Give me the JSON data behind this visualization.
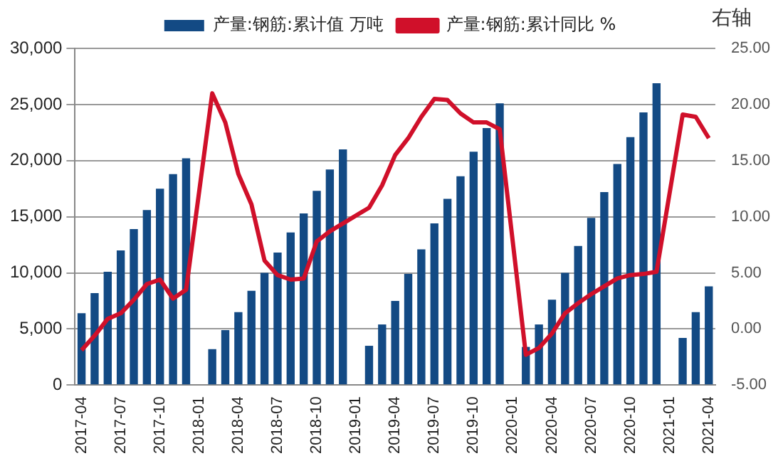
{
  "chart_data": {
    "type": "bar",
    "categories": [
      "2017-04",
      null,
      null,
      "2017-07",
      null,
      null,
      "2017-10",
      null,
      null,
      "2018-01",
      null,
      null,
      "2018-04",
      null,
      null,
      "2018-07",
      null,
      null,
      "2018-10",
      null,
      null,
      "2019-01",
      null,
      null,
      "2019-04",
      null,
      null,
      "2019-07",
      null,
      null,
      "2019-10",
      null,
      null,
      "2020-01",
      null,
      null,
      "2020-04",
      null,
      null,
      "2020-07",
      null,
      null,
      "2020-10",
      null,
      null,
      "2021-01",
      null,
      null,
      "2021-04"
    ],
    "series": [
      {
        "name": "产量:钢筋:累计值 万吨",
        "color": "#134a84",
        "values": [
          6400,
          8200,
          10100,
          12000,
          13900,
          15600,
          17500,
          18800,
          20200,
          null,
          3200,
          4900,
          6500,
          8400,
          10000,
          11800,
          13600,
          15300,
          17300,
          19200,
          21000,
          null,
          3500,
          5400,
          7500,
          9900,
          12100,
          14400,
          16600,
          18600,
          20800,
          22900,
          25100,
          null,
          3400,
          5400,
          7600,
          10000,
          12400,
          14900,
          17200,
          19700,
          22100,
          24300,
          26900,
          null,
          4200,
          6500,
          8800
        ]
      },
      {
        "name": "产量:钢筋:累计同比 %",
        "type": "line",
        "axis": "y2",
        "color": "#d0102a",
        "values": [
          -1.9,
          -0.6,
          0.9,
          1.4,
          2.6,
          4.0,
          4.4,
          2.7,
          3.5,
          null,
          21.0,
          18.4,
          13.8,
          11.1,
          6.1,
          4.8,
          4.4,
          4.5,
          7.8,
          8.7,
          9.4,
          null,
          10.8,
          12.8,
          15.5,
          17.0,
          18.9,
          20.5,
          20.4,
          19.2,
          18.4,
          18.4,
          17.8,
          null,
          -2.3,
          -1.7,
          -0.4,
          1.4,
          2.3,
          3.1,
          3.8,
          4.5,
          4.8,
          4.9,
          5.1,
          null,
          19.1,
          18.9,
          17.0
        ]
      }
    ],
    "ylim": [
      0,
      30000
    ],
    "yticks": [
      0,
      {
        "value": 5000,
        "label": "5,000"
      },
      {
        "value": 10000,
        "label": "10,000"
      },
      {
        "value": 15000,
        "label": "15,000"
      },
      {
        "value": 20000,
        "label": "20,000"
      },
      {
        "value": 25000,
        "label": "25,000"
      },
      {
        "value": 30000,
        "label": "30,000"
      }
    ],
    "y2lim": [
      -5,
      25
    ],
    "y2ticks": [
      {
        "value": -5,
        "label": "-5.00"
      },
      {
        "value": 0,
        "label": "0.00"
      },
      {
        "value": 5,
        "label": "5.00"
      },
      {
        "value": 10,
        "label": "10.00"
      },
      {
        "value": 15,
        "label": "15.00"
      },
      {
        "value": 20,
        "label": "20.00"
      },
      {
        "value": 25,
        "label": "25.00"
      }
    ],
    "grid": "y",
    "legend": "top",
    "marker": "none",
    "annotations": [
      "右轴"
    ]
  }
}
